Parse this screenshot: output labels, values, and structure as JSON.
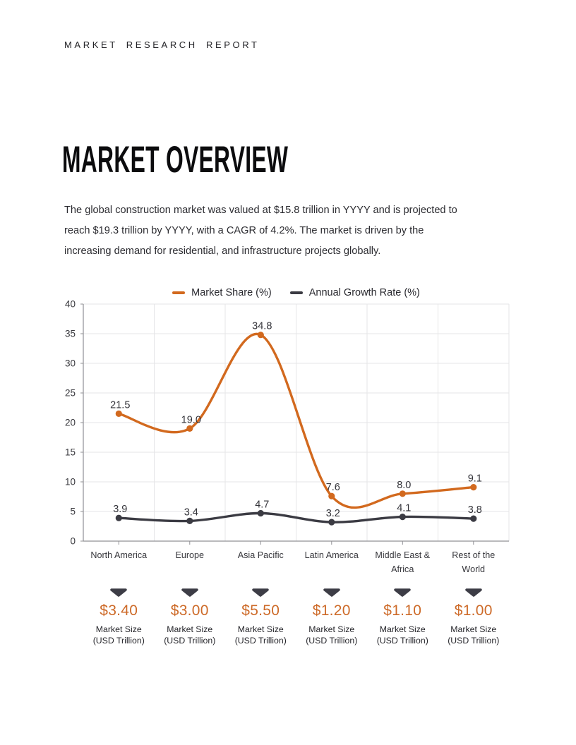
{
  "header": {
    "text": "MARKET RESEARCH REPORT"
  },
  "overview": {
    "title": "MARKET OVERVIEW",
    "paragraph": "The global construction market was valued at $15.8 trillion in YYYY and is projected to reach $19.3 trillion by YYYY, with a CAGR of 4.2%. The market is driven by the increasing demand for residential, and infrastructure projects globally."
  },
  "chart_data": {
    "type": "line",
    "title": "",
    "categories": [
      "North America",
      "Europe",
      "Asia Pacific",
      "Latin America",
      "Middle East & Africa",
      "Rest of the World"
    ],
    "series": [
      {
        "name": "Market Share (%)",
        "color": "#d2691e",
        "values": [
          21.5,
          19.0,
          34.8,
          7.6,
          8.0,
          9.1
        ]
      },
      {
        "name": "Annual Growth Rate (%)",
        "color": "#3b3b43",
        "values": [
          3.9,
          3.4,
          4.7,
          3.2,
          4.1,
          3.8
        ]
      }
    ],
    "xlabel": "",
    "ylabel": "",
    "ylim": [
      0,
      40
    ],
    "ytick_step": 5,
    "grid": true,
    "legend_position": "top",
    "data_labels": true
  },
  "market_size": {
    "label_line1": "Market Size",
    "label_line2": "(USD Trillion)",
    "values": [
      "$3.40",
      "$3.00",
      "$5.50",
      "$1.20",
      "$1.10",
      "$1.00"
    ]
  },
  "colors": {
    "accent_orange": "#d2691e",
    "dark_series": "#3b3b43",
    "grid_line": "#e5e5e7",
    "axis_line": "#909095",
    "tick_text": "#38383d",
    "data_label": "#34343a",
    "triangle": "#3d3d46"
  }
}
